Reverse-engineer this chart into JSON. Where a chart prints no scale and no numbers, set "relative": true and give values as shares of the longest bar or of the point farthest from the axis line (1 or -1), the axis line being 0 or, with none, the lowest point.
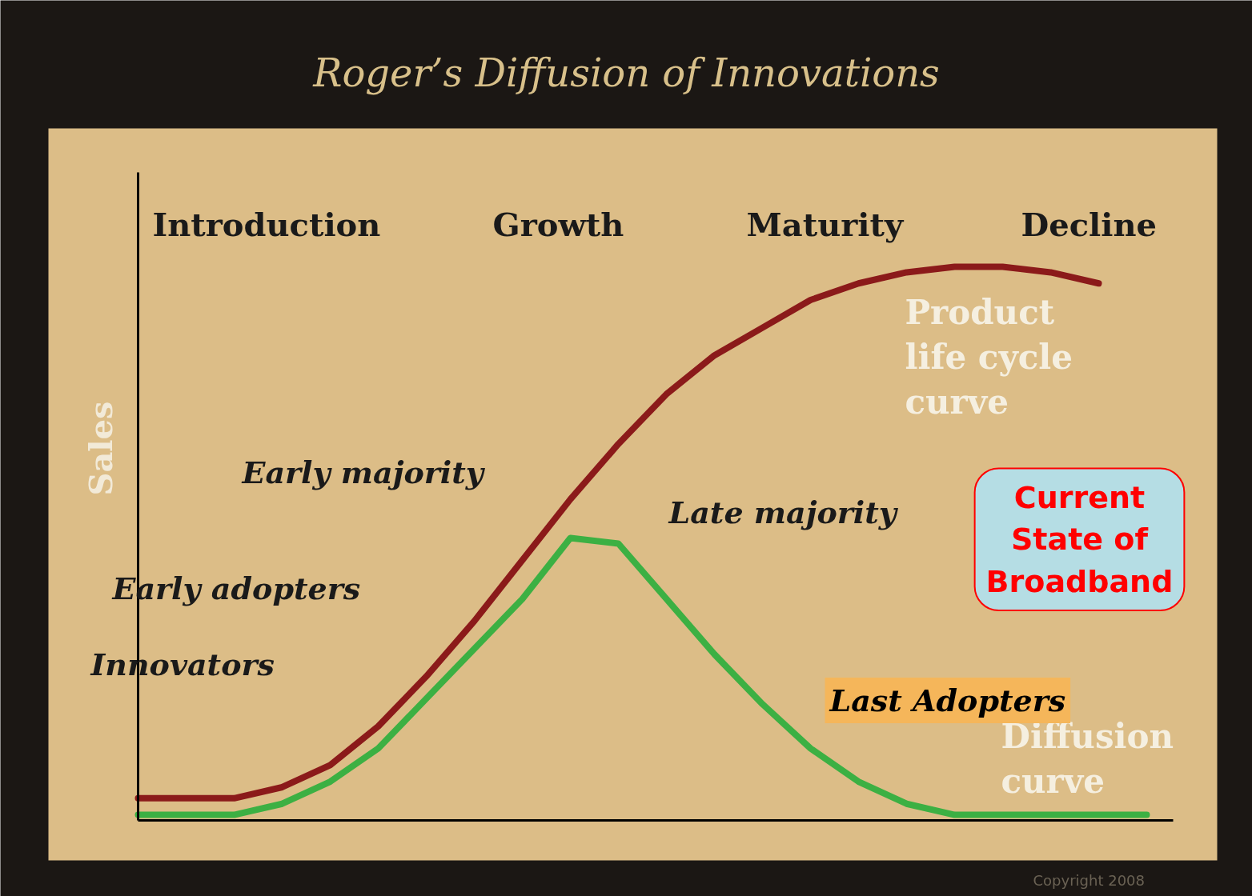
{
  "chart_data": {
    "type": "line",
    "title": "Roger’s Diffusion of Innovations",
    "ylabel": "Sales",
    "relative": true,
    "categories": [
      null,
      null,
      null,
      null,
      null,
      null,
      null,
      null,
      null,
      null,
      null,
      null,
      null,
      null,
      null,
      null,
      null,
      null,
      null,
      null,
      null,
      null
    ],
    "series": [
      {
        "name": "Product life cycle curve",
        "color": "#8b1a1a",
        "values": [
          0.04,
          0.04,
          0.04,
          0.06,
          0.1,
          0.17,
          0.26,
          0.36,
          0.47,
          0.58,
          0.68,
          0.77,
          0.84,
          0.89,
          0.94,
          0.97,
          0.99,
          1.0,
          1.0,
          0.99,
          0.97,
          null
        ]
      },
      {
        "name": "Diffusion curve",
        "color": "#3cb043",
        "values": [
          0.01,
          0.01,
          0.01,
          0.03,
          0.07,
          0.13,
          0.22,
          0.31,
          0.4,
          0.51,
          0.5,
          0.4,
          0.3,
          0.21,
          0.13,
          0.07,
          0.03,
          0.01,
          0.01,
          0.01,
          0.01,
          0.01
        ]
      }
    ],
    "annotations": [
      "Introduction",
      "Growth",
      "Maturity",
      "Decline",
      "Innovators",
      "Early adopters",
      "Early majority",
      "Late majority",
      "Last Adopters",
      "Current State of Broadband",
      "Copyright 2008"
    ]
  }
}
